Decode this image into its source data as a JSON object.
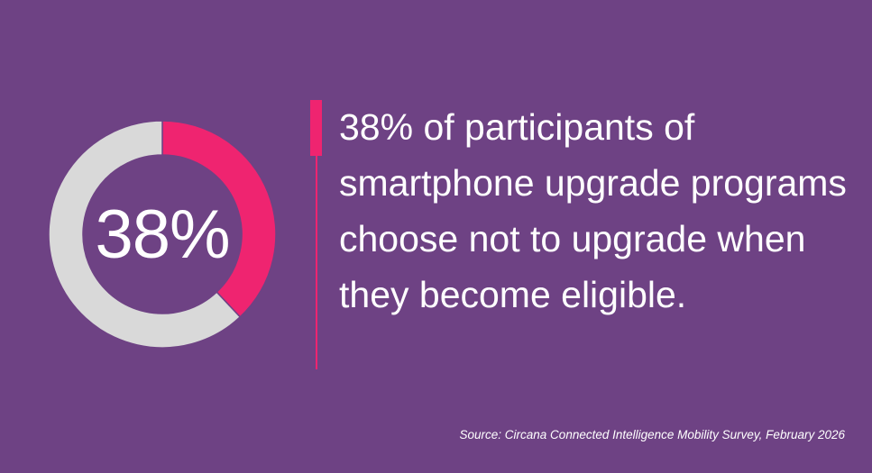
{
  "chart_data": {
    "type": "pie",
    "style": "donut",
    "values": [
      38,
      62
    ],
    "colors": [
      "#ef2470",
      "#d9d9d9"
    ],
    "center_label": "38%"
  },
  "statement": "38% of participants of smartphone upgrade programs choose not to upgrade when they become eligible.",
  "source": "Source: Circana Connected Intelligence Mobility Survey, February 2026",
  "colors": {
    "background": "#6e4284",
    "accent": "#ef2470",
    "remainder": "#d9d9d9",
    "text": "#ffffff"
  }
}
